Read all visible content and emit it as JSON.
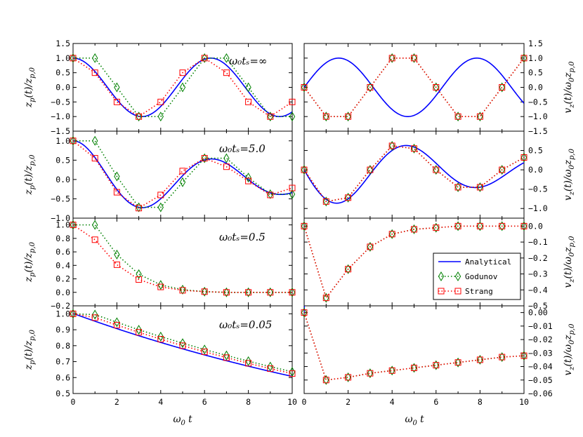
{
  "chart_data": {
    "type": "line",
    "x_ticks": [
      "0",
      "2",
      "4",
      "6",
      "8",
      "10"
    ],
    "xlabel": "ω₀t",
    "xlim": [
      0,
      10
    ],
    "legend": {
      "placement": "right",
      "entries": [
        {
          "name": "Analytical",
          "color": "#0000ff",
          "style": "solid"
        },
        {
          "name": "Godunov",
          "color": "#008000",
          "style": "dotted",
          "marker": "diamond"
        },
        {
          "name": "Strang",
          "color": "#ff0000",
          "style": "dotted",
          "marker": "square"
        }
      ]
    },
    "left_ylabel": "zp(t)/zp,0",
    "right_ylabel": "vz(t)/ω0zp,0",
    "rows": [
      {
        "annotation": "ω₀tₛ=∞",
        "left": {
          "ylim": [
            -1.5,
            1.5
          ],
          "yticks": [
            "1.5",
            "1.0",
            "0.5",
            "0.0",
            "−0.5",
            "−1.0",
            "−1.5"
          ],
          "analytical": {
            "kind": "cos"
          },
          "godunov": {
            "x": [
              0,
              1,
              2,
              3,
              4,
              5,
              6,
              7,
              8,
              9,
              10
            ],
            "y": [
              1.0,
              1.0,
              0.0,
              -1.0,
              -1.0,
              0.0,
              1.0,
              1.0,
              0.0,
              -1.0,
              -1.0
            ]
          },
          "strang": {
            "x": [
              0,
              1,
              2,
              3,
              4,
              5,
              6,
              7,
              8,
              9,
              10
            ],
            "y": [
              1.0,
              0.5,
              -0.5,
              -1.0,
              -0.5,
              0.5,
              1.0,
              0.5,
              -0.5,
              -1.0,
              -0.5
            ]
          }
        },
        "right": {
          "ylim": [
            -1.5,
            1.5
          ],
          "yticks": [
            "1.5",
            "1.0",
            "0.5",
            "0.0",
            "−0.5",
            "−1.0",
            "−1.5"
          ],
          "analytical": {
            "kind": "sin"
          },
          "godunov": {
            "x": [
              0,
              1,
              2,
              3,
              4,
              5,
              6,
              7,
              8,
              9,
              10
            ],
            "y": [
              0.0,
              -1.0,
              -1.0,
              0.0,
              1.0,
              1.0,
              0.0,
              -1.0,
              -1.0,
              0.0,
              1.0
            ]
          },
          "strang": {
            "x": [
              0,
              1,
              2,
              3,
              4,
              5,
              6,
              7,
              8,
              9,
              10
            ],
            "y": [
              0.0,
              -1.0,
              -1.0,
              0.0,
              1.0,
              1.0,
              0.0,
              -1.0,
              -1.0,
              0.0,
              1.0
            ]
          }
        }
      },
      {
        "annotation": "ω₀tₛ=5.0",
        "left": {
          "ylim": [
            -1.0,
            1.25
          ],
          "yticks": [
            "1.0",
            "0.5",
            "0.0",
            "−0.5",
            "−1.0"
          ],
          "analytical": {
            "kind": "damped_cos",
            "ts": 5.0
          },
          "godunov": {
            "x": [
              0,
              1,
              2,
              3,
              4,
              5,
              6,
              7,
              8,
              9,
              10
            ],
            "y": [
              1.0,
              1.0,
              0.08,
              -0.72,
              -0.72,
              -0.07,
              0.55,
              0.55,
              0.05,
              -0.38,
              -0.38
            ]
          },
          "strang": {
            "x": [
              0,
              1,
              2,
              3,
              4,
              5,
              6,
              7,
              8,
              9,
              10
            ],
            "y": [
              1.0,
              0.55,
              -0.33,
              -0.74,
              -0.4,
              0.22,
              0.55,
              0.33,
              -0.04,
              -0.4,
              -0.22
            ]
          }
        },
        "right": {
          "ylim": [
            -1.25,
            1.0
          ],
          "yticks": [
            "0.5",
            "0.0",
            "−0.5",
            "−1.0"
          ],
          "analytical": {
            "kind": "damped_vel",
            "ts": 5.0
          },
          "godunov": {
            "x": [
              0,
              1,
              2,
              3,
              4,
              5,
              6,
              7,
              8,
              9,
              10
            ],
            "y": [
              0.0,
              -0.82,
              -0.72,
              0.0,
              0.62,
              0.55,
              0.0,
              -0.45,
              -0.45,
              0.0,
              0.32
            ]
          },
          "strang": {
            "x": [
              0,
              1,
              2,
              3,
              4,
              5,
              6,
              7,
              8,
              9,
              10
            ],
            "y": [
              0.0,
              -0.82,
              -0.72,
              0.0,
              0.62,
              0.55,
              0.0,
              -0.45,
              -0.45,
              0.0,
              0.32
            ]
          }
        }
      },
      {
        "annotation": "ω₀tₛ=0.5",
        "left": {
          "ylim": [
            -0.2,
            1.1
          ],
          "yticks": [
            "1.0",
            "0.8",
            "0.6",
            "0.4",
            "0.2",
            "0.0",
            "−0.2"
          ],
          "analytical": {
            "kind": "damped_cos",
            "ts": 0.5
          },
          "godunov": {
            "x": [
              0,
              1,
              2,
              3,
              4,
              5,
              6,
              7,
              8,
              9,
              10
            ],
            "y": [
              1.0,
              1.0,
              0.56,
              0.27,
              0.11,
              0.04,
              0.01,
              0.0,
              0.0,
              0.0,
              0.0
            ]
          },
          "strang": {
            "x": [
              0,
              1,
              2,
              3,
              4,
              5,
              6,
              7,
              8,
              9,
              10
            ],
            "y": [
              1.0,
              0.78,
              0.41,
              0.19,
              0.08,
              0.03,
              0.01,
              0.0,
              0.0,
              0.0,
              0.0
            ]
          }
        },
        "right": {
          "ylim": [
            -0.5,
            0.05
          ],
          "yticks": [
            "0.0",
            "−0.1",
            "−0.2",
            "−0.3",
            "−0.4",
            "−0.5"
          ],
          "analytical": {
            "kind": "damped_vel",
            "ts": 0.5
          },
          "godunov": {
            "x": [
              0,
              1,
              2,
              3,
              4,
              5,
              6,
              7,
              8,
              9,
              10
            ],
            "y": [
              0.0,
              -0.45,
              -0.27,
              -0.13,
              -0.05,
              -0.02,
              -0.01,
              0.0,
              0.0,
              0.0,
              0.0
            ]
          },
          "strang": {
            "x": [
              0,
              1,
              2,
              3,
              4,
              5,
              6,
              7,
              8,
              9,
              10
            ],
            "y": [
              0.0,
              -0.45,
              -0.27,
              -0.13,
              -0.05,
              -0.02,
              -0.01,
              0.0,
              0.0,
              0.0,
              0.0
            ]
          }
        }
      },
      {
        "annotation": "ω₀tₛ=0.05",
        "left": {
          "ylim": [
            0.5,
            1.05
          ],
          "yticks": [
            "1.0",
            "0.9",
            "0.8",
            "0.7",
            "0.6",
            "0.5"
          ],
          "analytical": {
            "kind": "damped_cos",
            "ts": 0.05
          },
          "godunov": {
            "x": [
              0,
              1,
              2,
              3,
              4,
              5,
              6,
              7,
              8,
              9,
              10
            ],
            "y": [
              1.0,
              0.995,
              0.947,
              0.9,
              0.857,
              0.816,
              0.776,
              0.739,
              0.703,
              0.669,
              0.636
            ]
          },
          "strang": {
            "x": [
              0,
              1,
              2,
              3,
              4,
              5,
              6,
              7,
              8,
              9,
              10
            ],
            "y": [
              1.0,
              0.976,
              0.929,
              0.884,
              0.841,
              0.8,
              0.762,
              0.725,
              0.69,
              0.656,
              0.625
            ]
          }
        },
        "right": {
          "ylim": [
            -0.06,
            0.005
          ],
          "yticks": [
            "0.00",
            "−0.01",
            "−0.02",
            "−0.03",
            "−0.04",
            "−0.05",
            "−0.06"
          ],
          "analytical": {
            "kind": "damped_vel",
            "ts": 0.05
          },
          "godunov": {
            "x": [
              0,
              1,
              2,
              3,
              4,
              5,
              6,
              7,
              8,
              9,
              10
            ],
            "y": [
              0.0,
              -0.05,
              -0.048,
              -0.045,
              -0.043,
              -0.041,
              -0.039,
              -0.037,
              -0.035,
              -0.033,
              -0.032
            ]
          },
          "strang": {
            "x": [
              0,
              1,
              2,
              3,
              4,
              5,
              6,
              7,
              8,
              9,
              10
            ],
            "y": [
              0.0,
              -0.05,
              -0.048,
              -0.045,
              -0.043,
              -0.041,
              -0.039,
              -0.037,
              -0.035,
              -0.033,
              -0.032
            ]
          }
        }
      }
    ]
  }
}
